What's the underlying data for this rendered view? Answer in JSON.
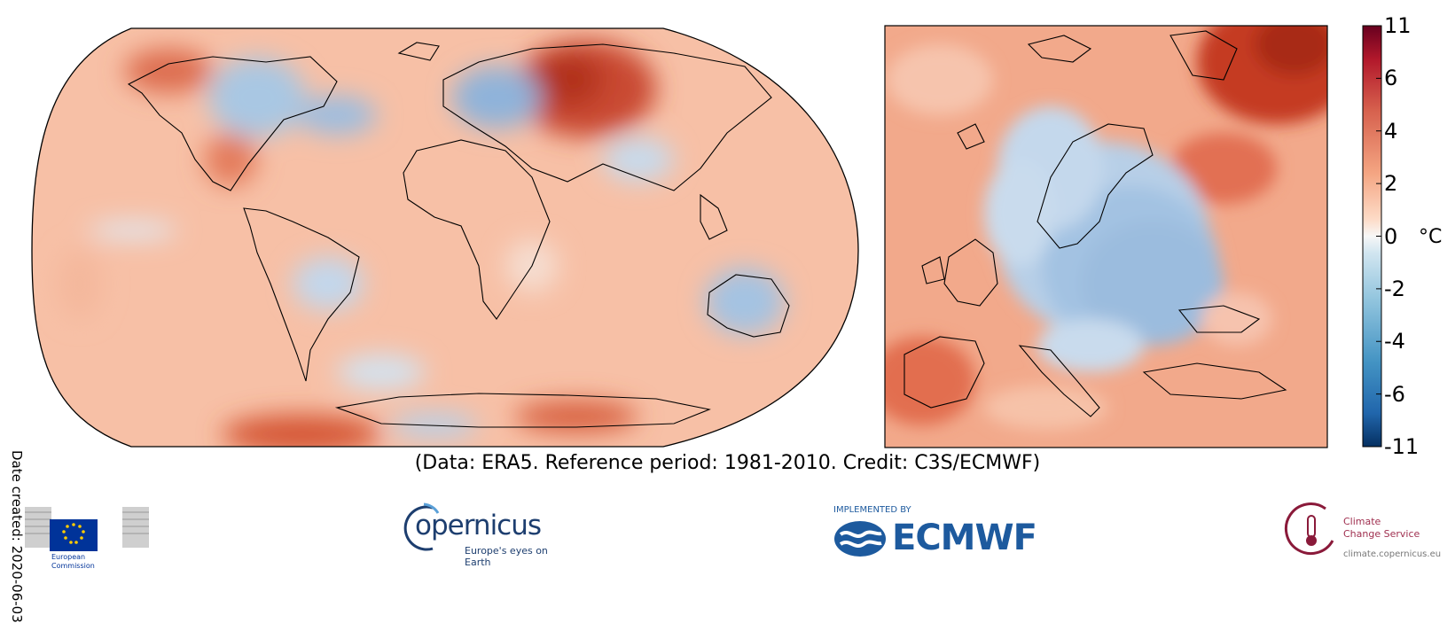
{
  "chart_data": {
    "type": "heatmap",
    "title": "",
    "panels": [
      "Global map",
      "Europe map"
    ],
    "colorbar": {
      "ticks": [
        11,
        6,
        4,
        2,
        0,
        -2,
        -4,
        -6,
        -11
      ],
      "unit": "°C",
      "colors": [
        "#67001f",
        "#b2182b",
        "#d6604d",
        "#f4a582",
        "#fddbc7",
        "#f7f7f7",
        "#d1e5f0",
        "#92c5de",
        "#4393c3",
        "#2166ac",
        "#053061"
      ]
    }
  },
  "date_created": "Date created: 2020-06-03",
  "credit_line": "(Data: ERA5.  Reference period: 1981-2010.  Credit: C3S/ECMWF)",
  "logos": {
    "ec": "European\nCommission",
    "copernicus_word": "opernicus",
    "copernicus_tag": "Europe's eyes on Earth",
    "ecmwf_implemented": "IMPLEMENTED BY",
    "ecmwf_word": "ECMWF",
    "c3s_line1": "Climate",
    "c3s_line2": "Change Service",
    "c3s_url": "climate.copernicus.eu"
  }
}
